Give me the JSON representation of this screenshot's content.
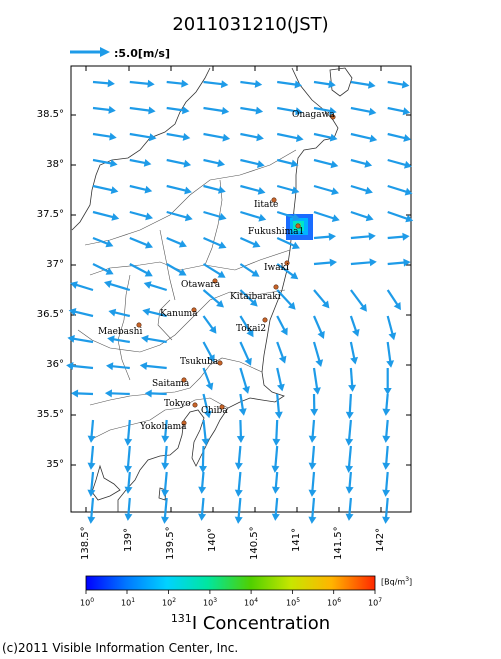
{
  "title": "2011031210(JST)",
  "scale_label": ":5.0[m/s]",
  "lat_labels": [
    "38.5°",
    "38°",
    "37.5°",
    "37°",
    "36.5°",
    "36°",
    "35.5°",
    "35°"
  ],
  "lon_labels": [
    "138.5°",
    "139°",
    "139.5°",
    "140°",
    "140.5°",
    "141°",
    "141.5°",
    "142°"
  ],
  "cities": [
    {
      "name": "Onagawa"
    },
    {
      "name": "Iitate"
    },
    {
      "name": "Fukushima1"
    },
    {
      "name": "Iwaki"
    },
    {
      "name": "Otawara"
    },
    {
      "name": "Kitaibaraki"
    },
    {
      "name": "Kanuma"
    },
    {
      "name": "Tokai2"
    },
    {
      "name": "Maebashi"
    },
    {
      "name": "Tsukuba"
    },
    {
      "name": "Saitama"
    },
    {
      "name": "Tokyo"
    },
    {
      "name": "Chiba"
    },
    {
      "name": "Yokohama"
    }
  ],
  "colorbar": {
    "tick_labels": [
      "10",
      "10",
      "10",
      "10",
      "10",
      "10",
      "10",
      "10"
    ],
    "tick_exponents": [
      "0",
      "1",
      "2",
      "3",
      "4",
      "5",
      "6",
      "7"
    ],
    "unit": "[Bq/m",
    "unit_exp": "3",
    "unit_close": "]"
  },
  "concentration_title_sup": "131",
  "concentration_title": "I Concentration",
  "copyright": "(c)2011 Visible Information Center, Inc.",
  "colors": {
    "arrow": "#1e9be8",
    "coast": "#333333",
    "frame": "#000000"
  }
}
